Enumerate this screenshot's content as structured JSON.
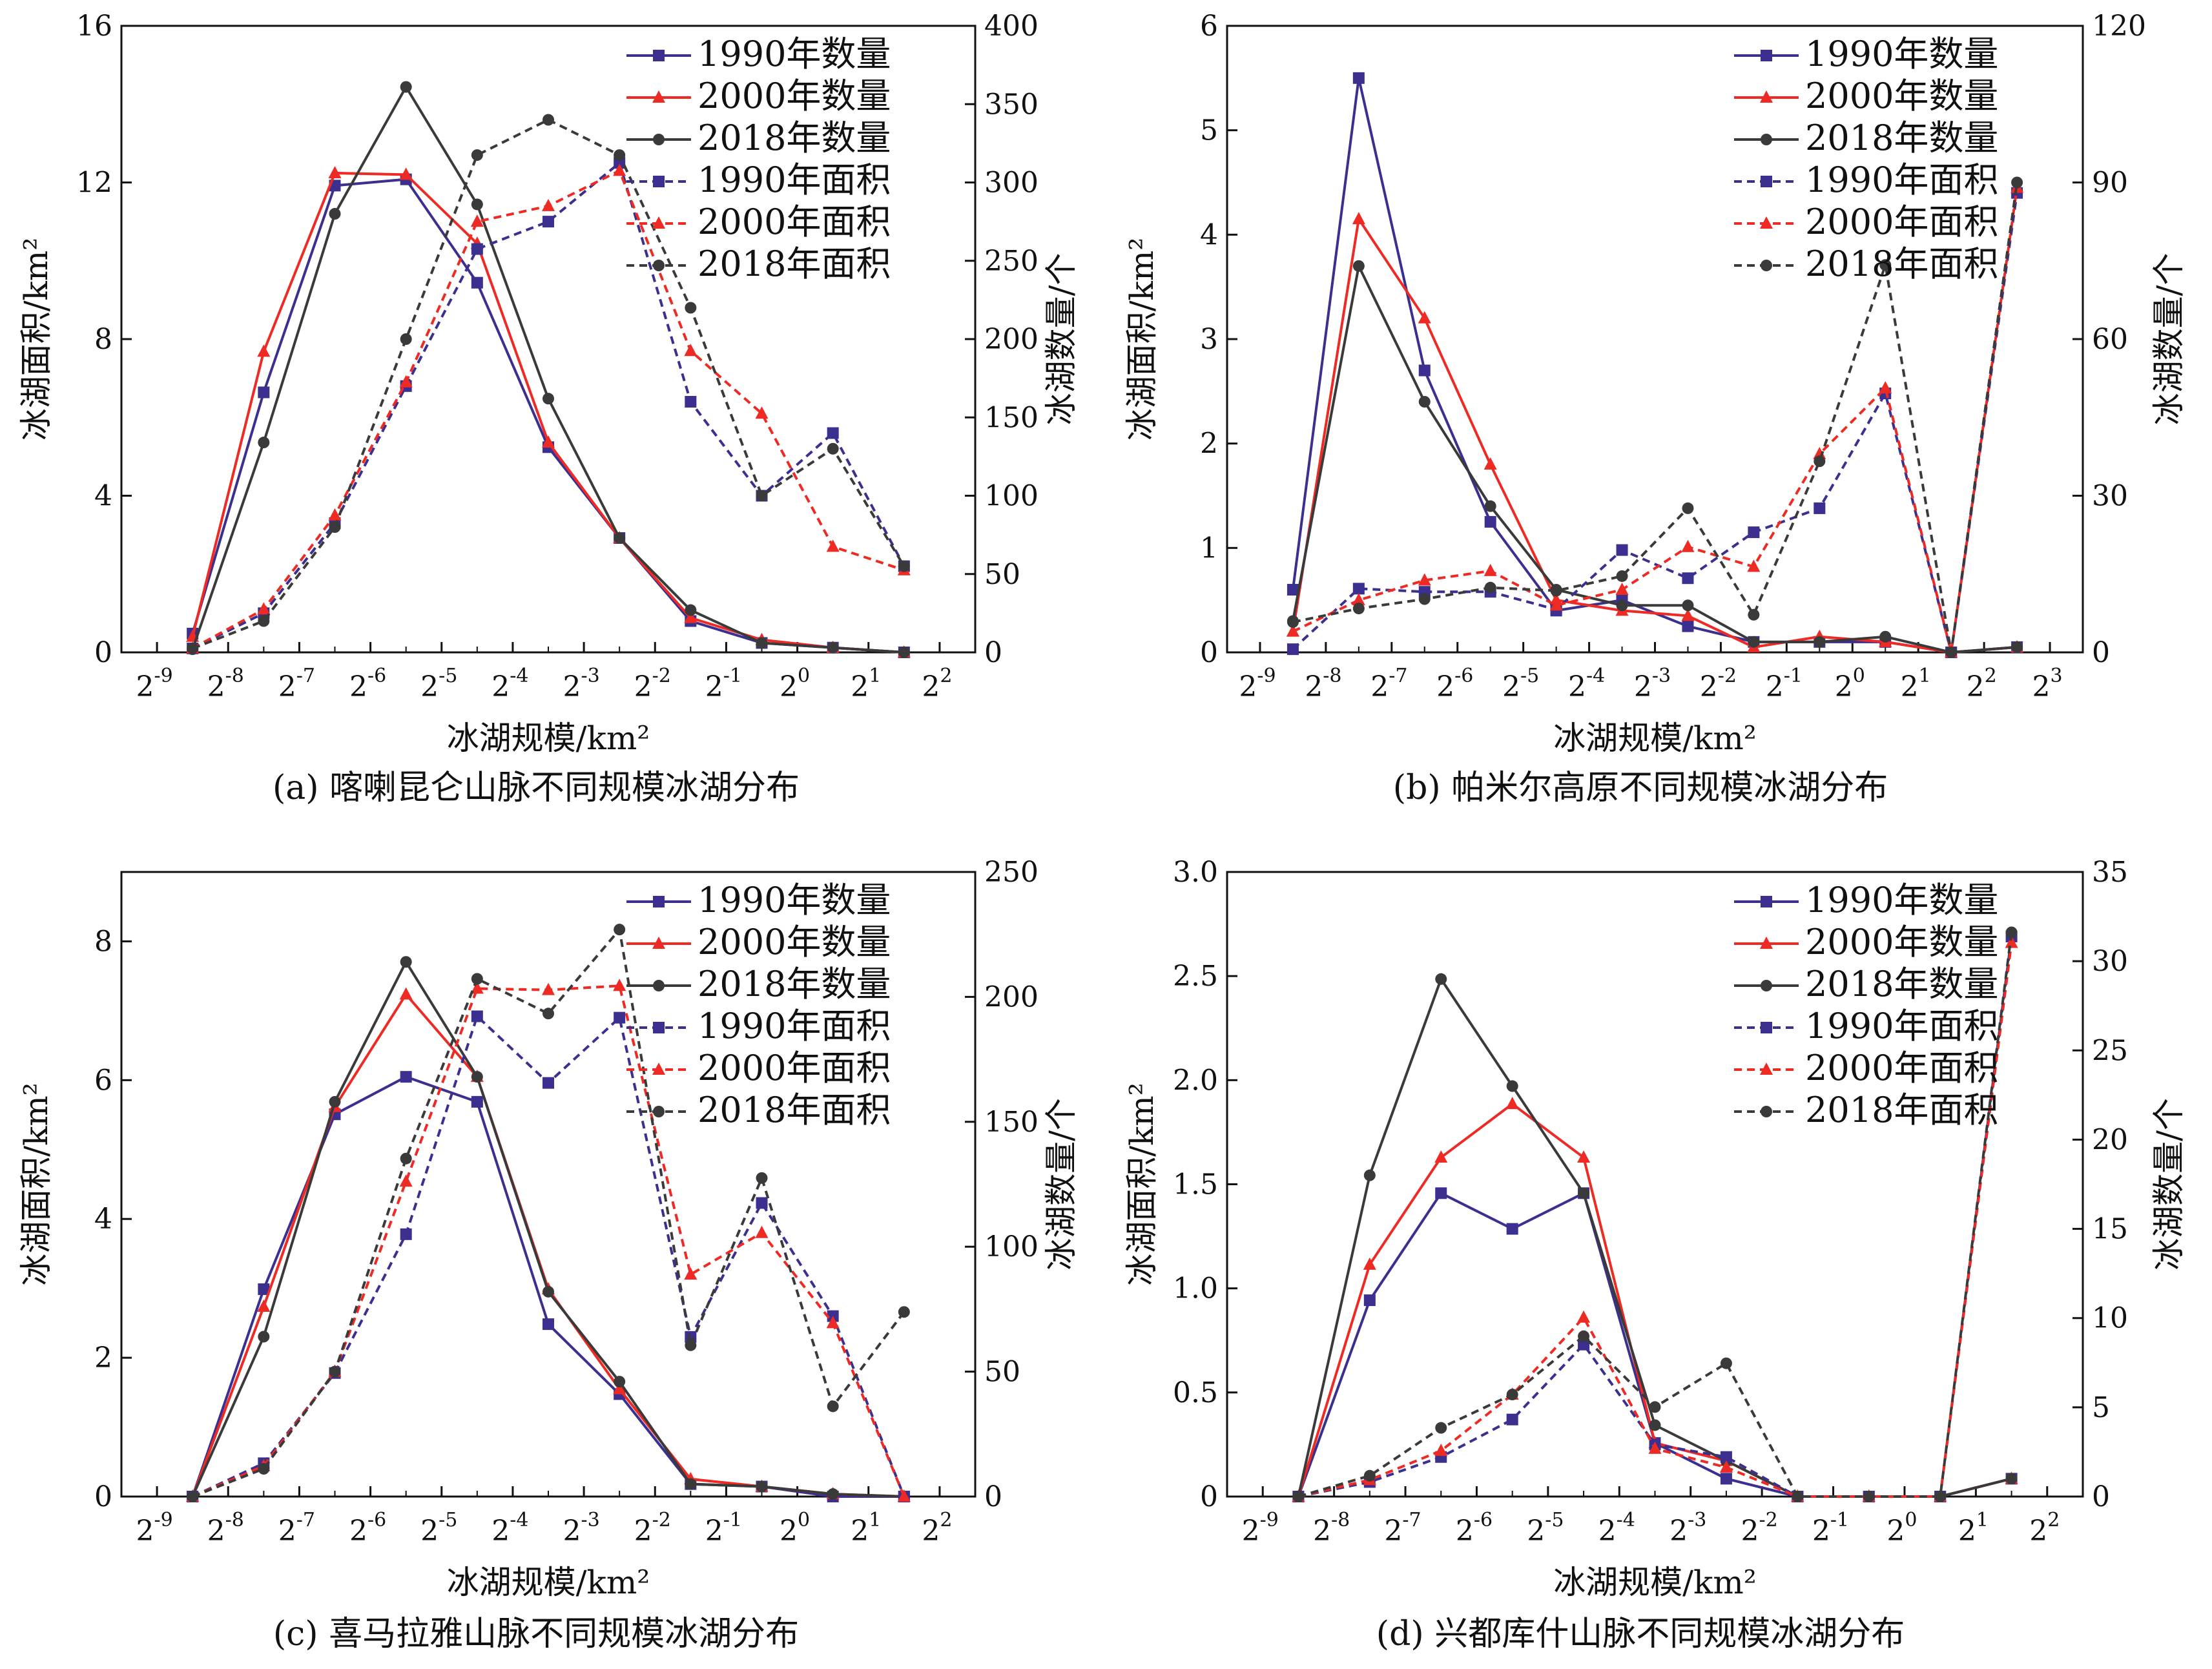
{
  "chart_data": [
    {
      "type": "line",
      "caption": "(a) 喀喇昆仑山脉不同规模冰湖分布",
      "xlabel": "冰湖规模/km²",
      "ylabel": "冰湖面积/km²",
      "y2label": "冰湖数量/个",
      "x_tick_labels": [
        {
          "base": "2",
          "exp": "-9"
        },
        {
          "base": "2",
          "exp": "-8"
        },
        {
          "base": "2",
          "exp": "-7"
        },
        {
          "base": "2",
          "exp": "-6"
        },
        {
          "base": "2",
          "exp": "-5"
        },
        {
          "base": "2",
          "exp": "-4"
        },
        {
          "base": "2",
          "exp": "-3"
        },
        {
          "base": "2",
          "exp": "-2"
        },
        {
          "base": "2",
          "exp": "-1"
        },
        {
          "base": "2",
          "exp": "0"
        },
        {
          "base": "2",
          "exp": "1"
        },
        {
          "base": "2",
          "exp": "2"
        }
      ],
      "x_ticks": [
        -9,
        -8,
        -7,
        -6,
        -5,
        -4,
        -3,
        -2,
        -1,
        0,
        1,
        2
      ],
      "xlim": [
        -9.5,
        2.5
      ],
      "ylim": [
        0,
        16
      ],
      "y_ticks": [
        0,
        4,
        8,
        12,
        16
      ],
      "y2lim": [
        0,
        400
      ],
      "y2_ticks": [
        0,
        50,
        100,
        150,
        200,
        250,
        300,
        350,
        400
      ],
      "legend_position": "top-right",
      "x": [
        -8.5,
        -7.5,
        -6.5,
        -5.5,
        -4.5,
        -3.5,
        -2.5,
        -1.5,
        -0.5,
        0.5,
        1.5
      ],
      "series": [
        {
          "name": "1990年数量",
          "axis": "right",
          "style": "solid",
          "marker": "square",
          "color": "#3b2f8f",
          "values": [
            12,
            166,
            298,
            302,
            236,
            131,
            73,
            20,
            6,
            3,
            0
          ]
        },
        {
          "name": "2000年数量",
          "axis": "right",
          "style": "solid",
          "marker": "triangle",
          "color": "#ee2a24",
          "values": [
            10,
            192,
            306,
            305,
            261,
            134,
            73,
            22,
            8,
            3,
            0
          ]
        },
        {
          "name": "2018年数量",
          "axis": "right",
          "style": "solid",
          "marker": "circle",
          "color": "#3a3a3a",
          "values": [
            2,
            134,
            280,
            361,
            286,
            162,
            73,
            27,
            6,
            3,
            0
          ]
        },
        {
          "name": "1990年面积",
          "axis": "left",
          "style": "dashed",
          "marker": "square",
          "color": "#3b2f8f",
          "values": [
            0.1,
            1.0,
            3.3,
            6.8,
            10.3,
            11.0,
            12.5,
            6.4,
            4.0,
            5.6,
            2.2
          ]
        },
        {
          "name": "2000年面积",
          "axis": "left",
          "style": "dashed",
          "marker": "triangle",
          "color": "#ee2a24",
          "values": [
            0.1,
            1.1,
            3.5,
            6.9,
            11.0,
            11.4,
            12.3,
            7.7,
            6.1,
            2.7,
            2.1
          ]
        },
        {
          "name": "2018年面积",
          "axis": "left",
          "style": "dashed",
          "marker": "circle",
          "color": "#3a3a3a",
          "values": [
            0.1,
            0.8,
            3.2,
            8.0,
            12.7,
            13.6,
            12.7,
            8.8,
            4.0,
            5.2,
            2.2
          ]
        }
      ]
    },
    {
      "type": "line",
      "caption": "(b) 帕米尔高原不同规模冰湖分布",
      "xlabel": "冰湖规模/km²",
      "ylabel": "冰湖面积/km²",
      "y2label": "冰湖数量/个",
      "x_tick_labels": [
        {
          "base": "2",
          "exp": "-9"
        },
        {
          "base": "2",
          "exp": "-8"
        },
        {
          "base": "2",
          "exp": "-7"
        },
        {
          "base": "2",
          "exp": "-6"
        },
        {
          "base": "2",
          "exp": "-5"
        },
        {
          "base": "2",
          "exp": "-4"
        },
        {
          "base": "2",
          "exp": "-3"
        },
        {
          "base": "2",
          "exp": "-2"
        },
        {
          "base": "2",
          "exp": "-1"
        },
        {
          "base": "2",
          "exp": "0"
        },
        {
          "base": "2",
          "exp": "1"
        },
        {
          "base": "2",
          "exp": "2"
        },
        {
          "base": "2",
          "exp": "3"
        }
      ],
      "x_ticks": [
        -9,
        -8,
        -7,
        -6,
        -5,
        -4,
        -3,
        -2,
        -1,
        0,
        1,
        2,
        3
      ],
      "xlim": [
        -9.5,
        3.5
      ],
      "ylim": [
        0,
        6
      ],
      "y_ticks": [
        0,
        1,
        2,
        3,
        4,
        5,
        6
      ],
      "y2lim": [
        0,
        120
      ],
      "y2_ticks": [
        0,
        30,
        60,
        90,
        120
      ],
      "legend_position": "top-right",
      "x": [
        -8.5,
        -7.5,
        -6.5,
        -5.5,
        -4.5,
        -3.5,
        -2.5,
        -1.5,
        -0.5,
        0.5,
        1.5,
        2.5
      ],
      "series": [
        {
          "name": "1990年数量",
          "axis": "right",
          "style": "solid",
          "marker": "square",
          "color": "#3b2f8f",
          "values": [
            12,
            110,
            54,
            25,
            8,
            10,
            5,
            2,
            2,
            2,
            0,
            1
          ]
        },
        {
          "name": "2000年数量",
          "axis": "right",
          "style": "solid",
          "marker": "triangle",
          "color": "#ee2a24",
          "values": [
            4,
            83,
            64,
            36,
            10,
            8,
            7,
            1,
            3,
            2,
            0,
            1
          ]
        },
        {
          "name": "2018年数量",
          "axis": "right",
          "style": "solid",
          "marker": "circle",
          "color": "#3a3a3a",
          "values": [
            6,
            74,
            48,
            28,
            12,
            9,
            9,
            2,
            2,
            3,
            0,
            1
          ]
        },
        {
          "name": "1990年面积",
          "axis": "left",
          "style": "dashed",
          "marker": "square",
          "color": "#3b2f8f",
          "values": [
            0.03,
            0.61,
            0.58,
            0.58,
            0.41,
            0.98,
            0.71,
            1.15,
            1.38,
            2.48,
            0.0,
            4.4
          ]
        },
        {
          "name": "2000年面积",
          "axis": "left",
          "style": "dashed",
          "marker": "triangle",
          "color": "#ee2a24",
          "values": [
            0.2,
            0.5,
            0.69,
            0.78,
            0.45,
            0.6,
            1.01,
            0.82,
            1.9,
            2.53,
            0.0,
            4.45
          ]
        },
        {
          "name": "2018年面积",
          "axis": "left",
          "style": "dashed",
          "marker": "circle",
          "color": "#3a3a3a",
          "values": [
            0.29,
            0.42,
            0.51,
            0.62,
            0.59,
            0.73,
            1.38,
            0.36,
            1.83,
            3.71,
            0.0,
            4.5
          ]
        }
      ]
    },
    {
      "type": "line",
      "caption": "(c) 喜马拉雅山脉不同规模冰湖分布",
      "xlabel": "冰湖规模/km²",
      "ylabel": "冰湖面积/km²",
      "y2label": "冰湖数量/个",
      "x_tick_labels": [
        {
          "base": "2",
          "exp": "-9"
        },
        {
          "base": "2",
          "exp": "-8"
        },
        {
          "base": "2",
          "exp": "-7"
        },
        {
          "base": "2",
          "exp": "-6"
        },
        {
          "base": "2",
          "exp": "-5"
        },
        {
          "base": "2",
          "exp": "-4"
        },
        {
          "base": "2",
          "exp": "-3"
        },
        {
          "base": "2",
          "exp": "-2"
        },
        {
          "base": "2",
          "exp": "-1"
        },
        {
          "base": "2",
          "exp": "0"
        },
        {
          "base": "2",
          "exp": "1"
        },
        {
          "base": "2",
          "exp": "2"
        }
      ],
      "x_ticks": [
        -9,
        -8,
        -7,
        -6,
        -5,
        -4,
        -3,
        -2,
        -1,
        0,
        1,
        2
      ],
      "xlim": [
        -9.5,
        2.5
      ],
      "ylim": [
        0,
        9
      ],
      "y_ticks": [
        0,
        2,
        4,
        6,
        8
      ],
      "y2lim": [
        0,
        250
      ],
      "y2_ticks": [
        0,
        50,
        100,
        150,
        200,
        250
      ],
      "legend_position": "top-right",
      "x": [
        -8.5,
        -7.5,
        -6.5,
        -5.5,
        -4.5,
        -3.5,
        -2.5,
        -1.5,
        -0.5,
        0.5,
        1.5
      ],
      "series": [
        {
          "name": "1990年数量",
          "axis": "right",
          "style": "solid",
          "marker": "square",
          "color": "#3b2f8f",
          "values": [
            0,
            83,
            153,
            168,
            158,
            69,
            41,
            5,
            4,
            0,
            0
          ]
        },
        {
          "name": "2000年数量",
          "axis": "right",
          "style": "solid",
          "marker": "triangle",
          "color": "#ee2a24",
          "values": [
            0,
            76,
            156,
            201,
            168,
            83,
            43,
            7,
            4,
            1,
            0
          ]
        },
        {
          "name": "2018年数量",
          "axis": "right",
          "style": "solid",
          "marker": "circle",
          "color": "#3a3a3a",
          "values": [
            0,
            64,
            158,
            214,
            168,
            82,
            46,
            5,
            4,
            1,
            0
          ]
        },
        {
          "name": "1990年面积",
          "axis": "left",
          "style": "dashed",
          "marker": "square",
          "color": "#3b2f8f",
          "values": [
            0.0,
            0.48,
            1.78,
            3.78,
            6.92,
            5.96,
            6.9,
            2.3,
            4.23,
            2.6,
            0.0
          ]
        },
        {
          "name": "2000年面积",
          "axis": "left",
          "style": "dashed",
          "marker": "triangle",
          "color": "#ee2a24",
          "values": [
            0.0,
            0.44,
            1.8,
            4.54,
            7.32,
            7.3,
            7.36,
            3.2,
            3.8,
            2.5,
            0.0
          ]
        },
        {
          "name": "2018年面积",
          "axis": "left",
          "style": "dashed",
          "marker": "circle",
          "color": "#3a3a3a",
          "values": [
            0.0,
            0.4,
            1.8,
            4.87,
            7.46,
            6.96,
            8.17,
            2.18,
            4.59,
            1.3,
            2.66
          ]
        }
      ]
    },
    {
      "type": "line",
      "caption": "(d) 兴都库什山脉不同规模冰湖分布",
      "xlabel": "冰湖规模/km²",
      "ylabel": "冰湖面积/km²",
      "y2label": "冰湖数量/个",
      "x_tick_labels": [
        {
          "base": "2",
          "exp": "-9"
        },
        {
          "base": "2",
          "exp": "-8"
        },
        {
          "base": "2",
          "exp": "-7"
        },
        {
          "base": "2",
          "exp": "-6"
        },
        {
          "base": "2",
          "exp": "-5"
        },
        {
          "base": "2",
          "exp": "-4"
        },
        {
          "base": "2",
          "exp": "-3"
        },
        {
          "base": "2",
          "exp": "-2"
        },
        {
          "base": "2",
          "exp": "-1"
        },
        {
          "base": "2",
          "exp": "0"
        },
        {
          "base": "2",
          "exp": "1"
        },
        {
          "base": "2",
          "exp": "2"
        }
      ],
      "x_ticks": [
        -9,
        -8,
        -7,
        -6,
        -5,
        -4,
        -3,
        -2,
        -1,
        0,
        1,
        2
      ],
      "xlim": [
        -9.5,
        2.5
      ],
      "ylim": [
        0,
        3.0
      ],
      "y_ticks": [
        0,
        0.5,
        1.0,
        1.5,
        2.0,
        2.5,
        3.0
      ],
      "y_tick_labels": [
        "0",
        "0.5",
        "1.0",
        "1.5",
        "2.0",
        "2.5",
        "3.0"
      ],
      "y2lim": [
        0,
        35
      ],
      "y2_ticks": [
        0,
        5,
        10,
        15,
        20,
        25,
        30,
        35
      ],
      "legend_position": "top-right",
      "x": [
        -8.5,
        -7.5,
        -6.5,
        -5.5,
        -4.5,
        -3.5,
        -2.5,
        -1.5,
        -0.5,
        0.5,
        1.5
      ],
      "series": [
        {
          "name": "1990年数量",
          "axis": "right",
          "style": "solid",
          "marker": "square",
          "color": "#3b2f8f",
          "values": [
            0,
            11,
            17,
            15,
            17,
            3,
            1,
            0,
            0,
            0,
            1
          ]
        },
        {
          "name": "2000年数量",
          "axis": "right",
          "style": "solid",
          "marker": "triangle",
          "color": "#ee2a24",
          "values": [
            0,
            13,
            19,
            22,
            19,
            3,
            2,
            0,
            0,
            0,
            1
          ]
        },
        {
          "name": "2018年数量",
          "axis": "right",
          "style": "solid",
          "marker": "circle",
          "color": "#3a3a3a",
          "values": [
            0,
            18,
            29,
            23,
            17,
            4,
            2,
            0,
            0,
            0,
            1
          ]
        },
        {
          "name": "1990年面积",
          "axis": "left",
          "style": "dashed",
          "marker": "square",
          "color": "#3b2f8f",
          "values": [
            0.0,
            0.07,
            0.19,
            0.37,
            0.73,
            0.25,
            0.19,
            0.0,
            0.0,
            0.0,
            2.69
          ]
        },
        {
          "name": "2000年面积",
          "axis": "left",
          "style": "dashed",
          "marker": "triangle",
          "color": "#ee2a24",
          "values": [
            0.0,
            0.08,
            0.22,
            0.49,
            0.86,
            0.23,
            0.14,
            0.0,
            0.0,
            0.0,
            2.66
          ]
        },
        {
          "name": "2018年面积",
          "axis": "left",
          "style": "dashed",
          "marker": "circle",
          "color": "#3a3a3a",
          "values": [
            0.0,
            0.1,
            0.33,
            0.49,
            0.77,
            0.43,
            0.64,
            0.0,
            0.0,
            0.0,
            2.71
          ]
        }
      ]
    }
  ]
}
